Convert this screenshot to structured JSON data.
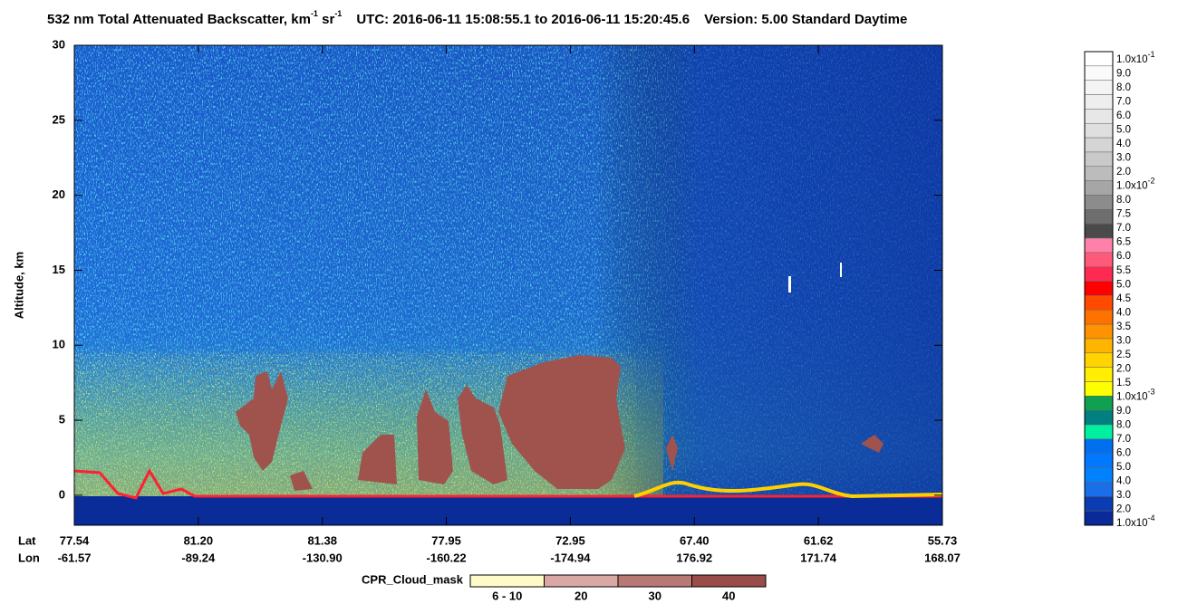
{
  "chart_data": {
    "type": "heatmap",
    "title": {
      "main": "532 nm Total Attenuated Backscatter, km",
      "exp1": "-1",
      "sr": " sr",
      "exp2": "-1",
      "utc": "UTC:  2016-06-11 15:08:55.1  to  2016-06-11 15:20:45.6",
      "version": "Version: 5.00  Standard  Daytime"
    },
    "ylabel": "Altitude, km",
    "ylim": [
      -2,
      30
    ],
    "yticks": [
      0,
      5,
      10,
      15,
      20,
      25,
      30
    ],
    "x_rows": [
      "Lat",
      "Lon"
    ],
    "lat": [
      "77.54",
      "81.20",
      "81.38",
      "77.95",
      "72.95",
      "67.40",
      "61.62",
      "55.73"
    ],
    "lon": [
      "-61.57",
      "-89.24",
      "-130.90",
      "-160.22",
      "-174.94",
      "176.92",
      "171.74",
      "168.07"
    ],
    "colorbar": {
      "labels": [
        {
          "base": "1.0x10",
          "exp": "-1"
        },
        "9.0",
        "8.0",
        "7.0",
        "6.0",
        "5.0",
        "4.0",
        "3.0",
        "2.0",
        {
          "base": "1.0x10",
          "exp": "-2"
        },
        "8.0",
        "7.5",
        "7.0",
        "6.5",
        "6.0",
        "5.5",
        "5.0",
        "4.5",
        "4.0",
        "3.5",
        "3.0",
        "2.5",
        "2.0",
        "1.5",
        {
          "base": "1.0x10",
          "exp": "-3"
        },
        "9.0",
        "8.0",
        "7.0",
        "6.0",
        "5.0",
        "4.0",
        "3.0",
        "2.0",
        {
          "base": "1.0x10",
          "exp": "-4"
        }
      ],
      "colors": [
        "#ffffff",
        "#fafafa",
        "#f4f4f4",
        "#eeeeee",
        "#e7e7e7",
        "#dfdfdf",
        "#d5d5d5",
        "#c9c9c9",
        "#bcbcbc",
        "#a6a6a6",
        "#8c8c8c",
        "#6e6e6e",
        "#4a4a4a",
        "#ff80a8",
        "#ff5a7a",
        "#ff2a52",
        "#ff0000",
        "#ff4a00",
        "#ff7200",
        "#ff9200",
        "#ffb400",
        "#ffd400",
        "#ffee00",
        "#ffff00",
        "#10a050",
        "#008080",
        "#00f0a0",
        "#0070f0",
        "#0078ff",
        "#0082ff",
        "#1a6ee8",
        "#0a3cb4",
        "#0a2a9a"
      ]
    },
    "cpr_legend": {
      "title": "CPR_Cloud_mask",
      "categories": [
        "6 - 10",
        "20",
        "30",
        "40"
      ],
      "colors": [
        "#fffbc8",
        "#d9a8a4",
        "#b87874",
        "#9a4c48"
      ]
    }
  }
}
